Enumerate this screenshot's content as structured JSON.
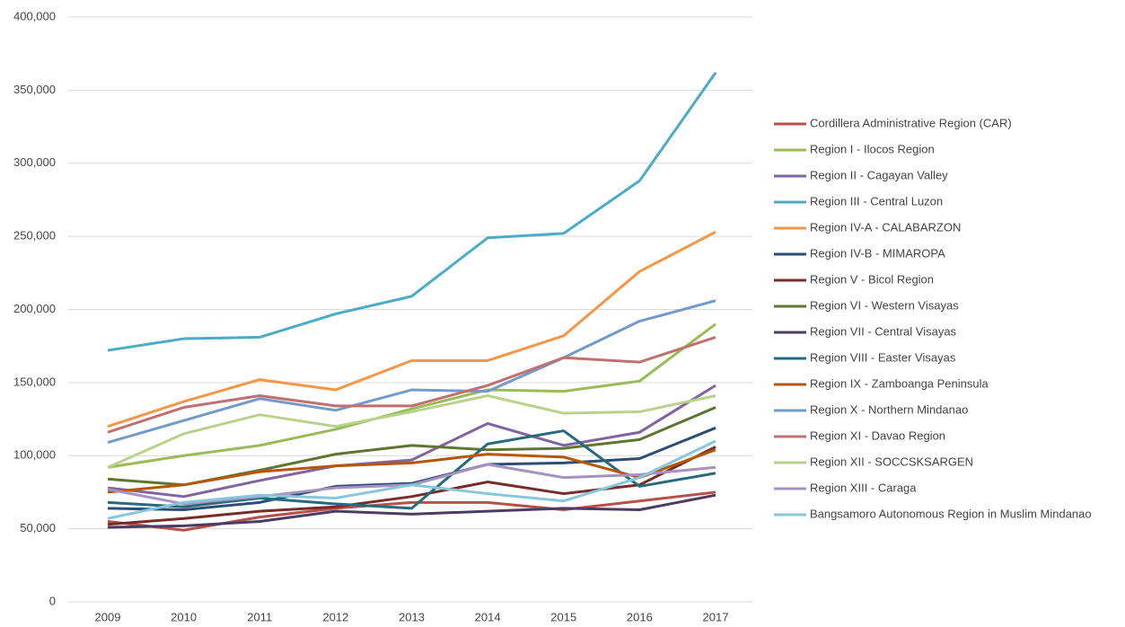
{
  "chart_data": {
    "type": "line",
    "x": [
      "2009",
      "2010",
      "2011",
      "2012",
      "2013",
      "2014",
      "2015",
      "2016",
      "2017"
    ],
    "ylim": [
      0,
      400000
    ],
    "yticks": [
      0,
      {
        "value": 50000,
        "label": "50,000"
      },
      {
        "value": 100000,
        "label": "100,000"
      },
      {
        "value": 150000,
        "label": "150,000"
      },
      {
        "value": 200000,
        "label": "200,000"
      },
      {
        "value": 250000,
        "label": "250,000"
      },
      {
        "value": 300000,
        "label": "300,000"
      },
      {
        "value": 350000,
        "label": "350,000"
      },
      {
        "value": 400000,
        "label": "400,000"
      }
    ],
    "grid": true,
    "legend": "right",
    "series": [
      {
        "name": "Cordillera Administrative Region (CAR)",
        "color": "#b5504b",
        "values": [
          55000,
          49000,
          58000,
          64000,
          68000,
          68000,
          63000,
          69000,
          75000
        ]
      },
      {
        "name": "Region I - Ilocos Region",
        "color": "#9bbb59",
        "values": [
          92000,
          100000,
          107000,
          118000,
          132000,
          145000,
          144000,
          151000,
          190000
        ]
      },
      {
        "name": "Region II - Cagayan Valley",
        "color": "#8064a2",
        "values": [
          78000,
          72000,
          83000,
          93000,
          97000,
          122000,
          107000,
          116000,
          148000
        ]
      },
      {
        "name": "Region III - Central Luzon",
        "color": "#4bacc6",
        "values": [
          172000,
          180000,
          181000,
          197000,
          209000,
          249000,
          252000,
          288000,
          362000
        ]
      },
      {
        "name": "Region IV-A - CALABARZON",
        "color": "#f79646",
        "values": [
          120000,
          137000,
          152000,
          145000,
          165000,
          165000,
          182000,
          226000,
          253000
        ]
      },
      {
        "name": "Region IV-B - MIMAROPA",
        "color": "#2c4d75",
        "values": [
          64000,
          63000,
          68000,
          79000,
          81000,
          94000,
          95000,
          98000,
          119000
        ]
      },
      {
        "name": "Region V - Bicol Region",
        "color": "#772c2a",
        "values": [
          53000,
          57000,
          62000,
          65000,
          72000,
          82000,
          74000,
          80000,
          106000
        ]
      },
      {
        "name": "Region VI - Western Visayas",
        "color": "#5f7530",
        "values": [
          84000,
          80000,
          90000,
          101000,
          107000,
          104000,
          105000,
          111000,
          133000
        ]
      },
      {
        "name": "Region VII - Central Visayas",
        "color": "#4d3b62",
        "values": [
          51000,
          52000,
          55000,
          62000,
          60000,
          62000,
          64000,
          63000,
          73000
        ]
      },
      {
        "name": "Region VIII - Easter Visayas",
        "color": "#276a7c",
        "values": [
          68000,
          65000,
          71000,
          67000,
          64000,
          108000,
          117000,
          79000,
          88000
        ]
      },
      {
        "name": "Region IX - Zamboanga Peninsula",
        "color": "#b65708",
        "values": [
          75000,
          80000,
          89000,
          93000,
          95000,
          101000,
          99000,
          85000,
          104000
        ]
      },
      {
        "name": "Region X - Northern Mindanao",
        "color": "#729aca",
        "values": [
          109000,
          124000,
          139000,
          131000,
          145000,
          144000,
          167000,
          192000,
          206000
        ]
      },
      {
        "name": "Region XI - Davao Region",
        "color": "#c0716f",
        "values": [
          116000,
          133000,
          141000,
          134000,
          134000,
          148000,
          167000,
          164000,
          181000
        ]
      },
      {
        "name": "Region XII - SOCCSKSARGEN",
        "color": "#b9d28a",
        "values": [
          92000,
          115000,
          128000,
          120000,
          130000,
          141000,
          129000,
          130000,
          141000
        ]
      },
      {
        "name": "Region XIII - Caraga",
        "color": "#a692c0",
        "values": [
          77000,
          67000,
          72000,
          78000,
          80000,
          94000,
          85000,
          87000,
          92000
        ]
      },
      {
        "name": "Bangsamoro Autonomous Region in Muslim Mindanao",
        "color": "#86c7da",
        "values": [
          57000,
          68000,
          73000,
          71000,
          80000,
          74000,
          69000,
          85000,
          110000
        ]
      }
    ]
  }
}
